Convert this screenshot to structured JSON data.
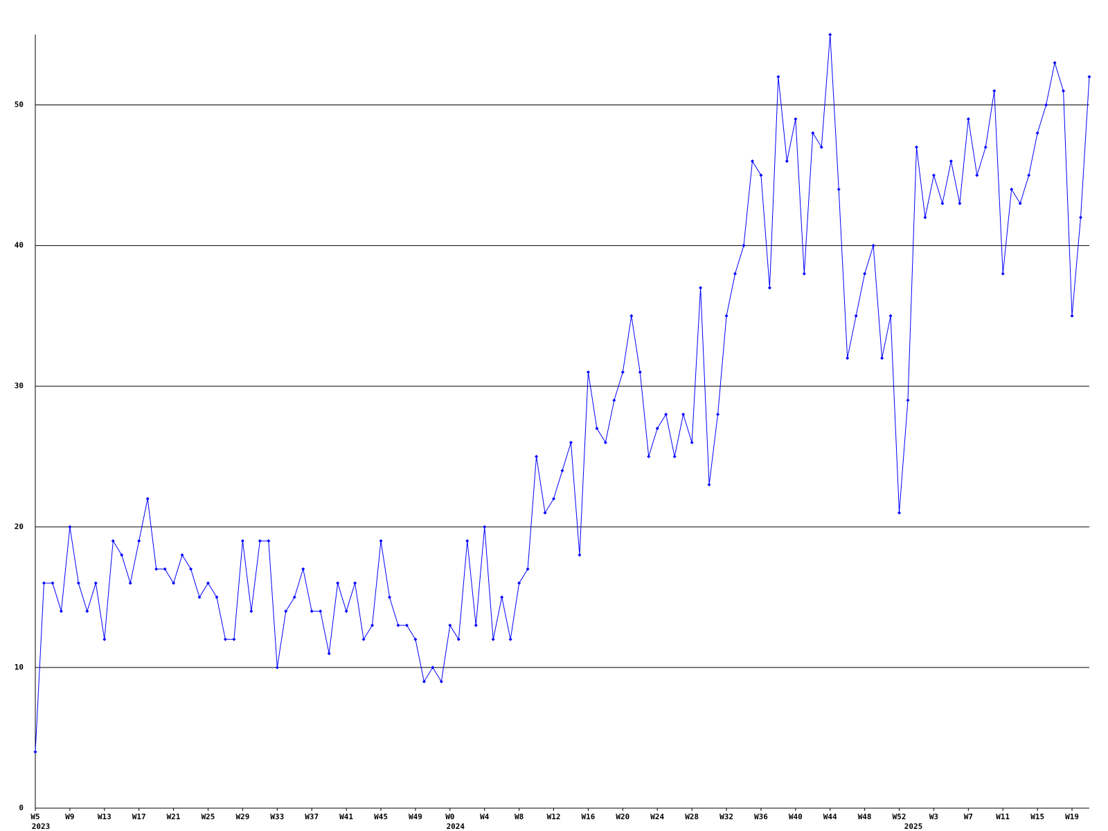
{
  "chart_data": {
    "type": "line",
    "categories": [
      "W5",
      null,
      null,
      null,
      "W9",
      null,
      null,
      null,
      "W13",
      null,
      null,
      null,
      "W17",
      null,
      null,
      null,
      "W21",
      null,
      null,
      null,
      "W25",
      null,
      null,
      null,
      "W29",
      null,
      null,
      null,
      "W33",
      null,
      null,
      null,
      "W37",
      null,
      null,
      null,
      "W41",
      null,
      null,
      null,
      "W45",
      null,
      null,
      null,
      "W49",
      null,
      null,
      null,
      "W0",
      null,
      null,
      null,
      "W4",
      null,
      null,
      null,
      "W8",
      null,
      null,
      null,
      "W12",
      null,
      null,
      null,
      "W16",
      null,
      null,
      null,
      "W20",
      null,
      null,
      null,
      "W24",
      null,
      null,
      null,
      "W28",
      null,
      null,
      null,
      "W32",
      null,
      null,
      null,
      "W36",
      null,
      null,
      null,
      "W40",
      null,
      null,
      null,
      "W44",
      null,
      null,
      null,
      "W48",
      null,
      null,
      null,
      "W52",
      null,
      null,
      null,
      "W3",
      null,
      null,
      null,
      "W7",
      null,
      null,
      null,
      "W11",
      null,
      null,
      null,
      "W15",
      null,
      null,
      null,
      "W19",
      null,
      null
    ],
    "year_categories": [
      "2023",
      null,
      null,
      null,
      null,
      null,
      null,
      null,
      null,
      null,
      null,
      null,
      null,
      null,
      null,
      null,
      null,
      null,
      null,
      null,
      null,
      null,
      null,
      null,
      null,
      null,
      null,
      null,
      null,
      null,
      null,
      null,
      null,
      null,
      null,
      null,
      null,
      null,
      null,
      null,
      null,
      null,
      null,
      null,
      null,
      null,
      null,
      null,
      "2024",
      null,
      null,
      null,
      null,
      null,
      null,
      null,
      null,
      null,
      null,
      null,
      null,
      null,
      null,
      null,
      null,
      null,
      null,
      null,
      null,
      null,
      null,
      null,
      null,
      null,
      null,
      null,
      null,
      null,
      null,
      null,
      null,
      null,
      null,
      null,
      null,
      null,
      null,
      null,
      null,
      null,
      null,
      null,
      null,
      null,
      null,
      null,
      null,
      null,
      null,
      null,
      null,
      "2025",
      null,
      null,
      null,
      null,
      null,
      null,
      null,
      null,
      null,
      null,
      null,
      null,
      null,
      null,
      null,
      null,
      null,
      null,
      null,
      null
    ],
    "series": [
      {
        "color": "#0000ff",
        "values": [
          4,
          16,
          16,
          14,
          20,
          16,
          14,
          16,
          12,
          19,
          18,
          16,
          19,
          22,
          17,
          17,
          16,
          18,
          17,
          15,
          16,
          15,
          12,
          12,
          19,
          14,
          19,
          19,
          10,
          14,
          15,
          17,
          14,
          14,
          11,
          16,
          14,
          16,
          12,
          13,
          19,
          15,
          13,
          13,
          12,
          9,
          10,
          9,
          13,
          12,
          19,
          13,
          20,
          12,
          15,
          12,
          16,
          17,
          25,
          21,
          22,
          24,
          26,
          18,
          31,
          27,
          26,
          29,
          31,
          35,
          31,
          25,
          27,
          28,
          25,
          28,
          26,
          37,
          23,
          28,
          35,
          38,
          40,
          46,
          45,
          37,
          52,
          46,
          49,
          38,
          48,
          47,
          55,
          44,
          32,
          35,
          38,
          40,
          32,
          35,
          21,
          29,
          47,
          42,
          45,
          43,
          46,
          43,
          49,
          45,
          47,
          51,
          38,
          44,
          43,
          45,
          48,
          50,
          53,
          51,
          35,
          42,
          52
        ]
      }
    ],
    "ylim": [
      0,
      55
    ],
    "yticks": [
      0,
      10,
      20,
      30,
      40,
      50
    ],
    "grid": true
  }
}
